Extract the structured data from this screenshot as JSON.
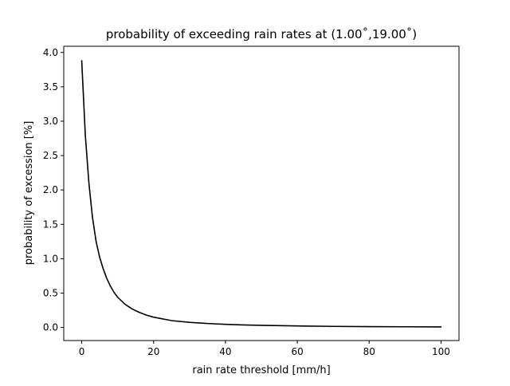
{
  "chart_data": {
    "type": "line",
    "title": "probability of exceeding rain rates at (1.00˚,19.00˚)",
    "xlabel": "rain rate threshold [mm/h]",
    "ylabel": "probability of excession [%]",
    "xlim": [
      -5,
      105
    ],
    "ylim": [
      -0.19,
      4.09
    ],
    "xticks": [
      0,
      20,
      40,
      60,
      80,
      100
    ],
    "xtick_labels": [
      "0",
      "20",
      "40",
      "60",
      "80",
      "100"
    ],
    "yticks": [
      0.0,
      0.5,
      1.0,
      1.5,
      2.0,
      2.5,
      3.0,
      3.5,
      4.0
    ],
    "ytick_labels": [
      "0.0",
      "0.5",
      "1.0",
      "1.5",
      "2.0",
      "2.5",
      "3.0",
      "3.5",
      "4.0"
    ],
    "grid": false,
    "series": [
      {
        "color": "#000000",
        "x": [
          0,
          1,
          2,
          3,
          4,
          5,
          6,
          7,
          8,
          9,
          10,
          12,
          14,
          16,
          18,
          20,
          25,
          30,
          35,
          40,
          45,
          50,
          60,
          70,
          80,
          90,
          100
        ],
        "y": [
          3.88,
          2.8,
          2.1,
          1.6,
          1.25,
          1.02,
          0.85,
          0.71,
          0.6,
          0.51,
          0.44,
          0.34,
          0.27,
          0.22,
          0.18,
          0.15,
          0.1,
          0.075,
          0.058,
          0.046,
          0.037,
          0.031,
          0.022,
          0.016,
          0.012,
          0.01,
          0.008
        ]
      }
    ]
  }
}
